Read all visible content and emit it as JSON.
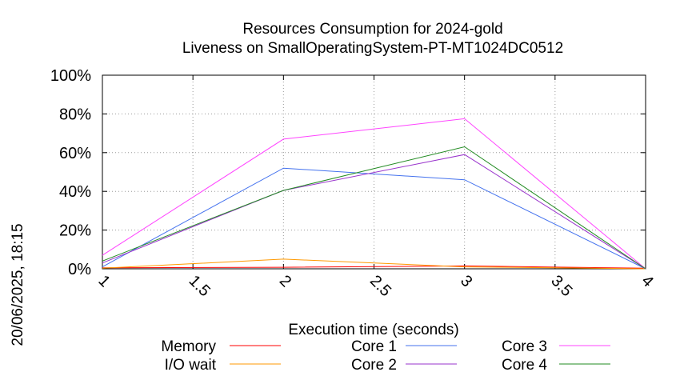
{
  "chart_data": {
    "type": "line",
    "title_line1": "Resources Consumption for 2024-gold",
    "title_line2": "Liveness on SmallOperatingSystem-PT-MT1024DC0512",
    "xlabel": "Execution time (seconds)",
    "ylabel": "",
    "side_label": "20/06/2025, 18:15",
    "xlim": [
      1,
      4
    ],
    "ylim": [
      0,
      100
    ],
    "x_ticks": [
      "1",
      "1.5",
      "2",
      "2.5",
      "3",
      "3.5",
      "4"
    ],
    "x_tick_values": [
      1,
      1.5,
      2,
      2.5,
      3,
      3.5,
      4
    ],
    "y_ticks": [
      "0%",
      "20%",
      "40%",
      "60%",
      "80%",
      "100%"
    ],
    "y_tick_values": [
      0,
      20,
      40,
      60,
      80,
      100
    ],
    "grid": true,
    "legend_position": "bottom",
    "series": [
      {
        "name": "Memory",
        "color": "#ff0000",
        "x": [
          1,
          2,
          3,
          4
        ],
        "values": [
          0.5,
          0.8,
          1.5,
          0.3
        ]
      },
      {
        "name": "I/O wait",
        "color": "#ff9900",
        "x": [
          1,
          2,
          3,
          4
        ],
        "values": [
          0.3,
          5,
          1,
          0
        ]
      },
      {
        "name": "Core 1",
        "color": "#4472ee",
        "x": [
          1,
          2,
          3,
          4
        ],
        "values": [
          1,
          52,
          46,
          0
        ]
      },
      {
        "name": "Core 2",
        "color": "#9933cc",
        "x": [
          1,
          2,
          3,
          4
        ],
        "values": [
          3,
          40.5,
          59,
          0
        ]
      },
      {
        "name": "Core 3",
        "color": "#ff44ff",
        "x": [
          1,
          2,
          3,
          4
        ],
        "values": [
          7,
          67,
          77.5,
          0
        ]
      },
      {
        "name": "Core 4",
        "color": "#228b22",
        "x": [
          1,
          2,
          3,
          4
        ],
        "values": [
          4,
          40.5,
          63,
          0
        ]
      }
    ]
  }
}
